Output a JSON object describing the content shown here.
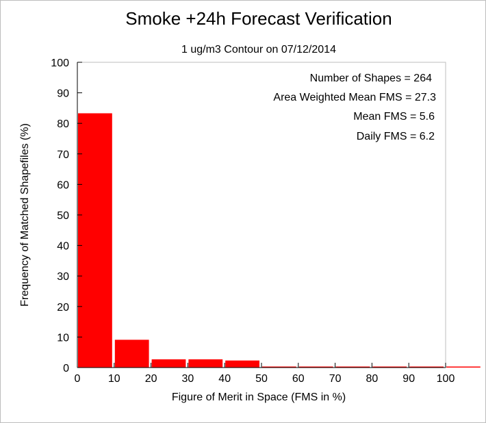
{
  "chart_data": {
    "type": "bar",
    "title": "Smoke +24h Forecast Verification",
    "subtitle": "1 ug/m3 Contour on 07/12/2014",
    "xlabel": "Figure of Merit in Space (FMS in %)",
    "ylabel": "Frequency of Matched Shapefiles (%)",
    "xlim": [
      0,
      100
    ],
    "ylim": [
      0,
      100
    ],
    "xticks": [
      "0",
      "10",
      "20",
      "30",
      "40",
      "50",
      "60",
      "70",
      "80",
      "90",
      "100"
    ],
    "yticks": [
      "0",
      "10",
      "20",
      "30",
      "40",
      "50",
      "60",
      "70",
      "80",
      "90",
      "100"
    ],
    "bins": [
      {
        "x0": 0,
        "x1": 10,
        "value": 83.3
      },
      {
        "x0": 10,
        "x1": 20,
        "value": 9.1
      },
      {
        "x0": 20,
        "x1": 30,
        "value": 2.7
      },
      {
        "x0": 30,
        "x1": 40,
        "value": 2.7
      },
      {
        "x0": 40,
        "x1": 50,
        "value": 2.3
      },
      {
        "x0": 50,
        "x1": 60,
        "value": 0
      },
      {
        "x0": 60,
        "x1": 70,
        "value": 0
      },
      {
        "x0": 70,
        "x1": 80,
        "value": 0
      },
      {
        "x0": 80,
        "x1": 90,
        "value": 0
      },
      {
        "x0": 90,
        "x1": 100,
        "value": 0
      },
      {
        "x0": 100,
        "x1": 110,
        "value": 0
      }
    ],
    "bar_color": "#ff0000",
    "grid": false,
    "annotations": [
      "Number of Shapes = 264",
      "Area Weighted Mean FMS = 27.3",
      "Mean FMS = 5.6",
      "Daily FMS = 6.2"
    ]
  }
}
